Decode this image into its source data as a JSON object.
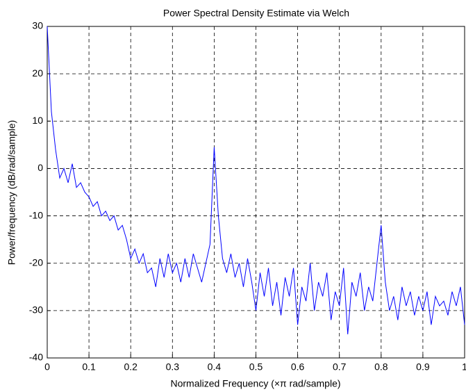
{
  "chart_data": {
    "type": "line",
    "title": "Power Spectral Density Estimate via Welch",
    "x_label": "Normalized Frequency  (×π rad/sample)",
    "y_label": "Power/frequency (dB/rad/sample)",
    "x": [
      0,
      0.01,
      0.02,
      0.03,
      0.04,
      0.05,
      0.06,
      0.07,
      0.08,
      0.09,
      0.1,
      0.11,
      0.12,
      0.13,
      0.14,
      0.15,
      0.16,
      0.17,
      0.18,
      0.19,
      0.2,
      0.21,
      0.22,
      0.23,
      0.24,
      0.25,
      0.26,
      0.27,
      0.28,
      0.29,
      0.3,
      0.31,
      0.32,
      0.33,
      0.34,
      0.35,
      0.36,
      0.37,
      0.38,
      0.39,
      0.4,
      0.41,
      0.42,
      0.43,
      0.44,
      0.45,
      0.46,
      0.47,
      0.48,
      0.49,
      0.5,
      0.51,
      0.52,
      0.53,
      0.54,
      0.55,
      0.56,
      0.57,
      0.58,
      0.59,
      0.6,
      0.61,
      0.62,
      0.63,
      0.64,
      0.65,
      0.66,
      0.67,
      0.68,
      0.69,
      0.7,
      0.71,
      0.72,
      0.73,
      0.74,
      0.75,
      0.76,
      0.77,
      0.78,
      0.79,
      0.8,
      0.81,
      0.82,
      0.83,
      0.84,
      0.85,
      0.86,
      0.87,
      0.88,
      0.89,
      0.9,
      0.91,
      0.92,
      0.93,
      0.94,
      0.95,
      0.96,
      0.97,
      0.98,
      0.99,
      1
    ],
    "series": [
      {
        "color": "#0000ff",
        "values": [
          30,
          12,
          4,
          -2,
          0,
          -3,
          1,
          -4,
          -3,
          -5,
          -6,
          -8,
          -7,
          -10,
          -9,
          -11,
          -10,
          -13,
          -12,
          -15,
          -19,
          -17,
          -20,
          -18,
          -22,
          -21,
          -25,
          -19,
          -23,
          -18,
          -22,
          -20,
          -24,
          -19,
          -23,
          -18,
          -21,
          -24,
          -20,
          -16,
          4.5,
          -10,
          -19,
          -22,
          -18,
          -23,
          -20,
          -25,
          -19,
          -24,
          -30,
          -22,
          -27,
          -21,
          -29,
          -24,
          -31,
          -23,
          -27,
          -21,
          -33,
          -25,
          -28,
          -20,
          -30,
          -24,
          -27,
          -22,
          -32,
          -26,
          -29,
          -21,
          -35,
          -24,
          -27,
          -22,
          -30,
          -25,
          -28,
          -20,
          -12,
          -24,
          -30,
          -27,
          -32,
          -25,
          -29,
          -26,
          -31,
          -27,
          -30,
          -26,
          -33,
          -27,
          -29,
          -28,
          -31,
          -26,
          -29,
          -25,
          -33
        ]
      }
    ],
    "xlim": [
      0,
      1
    ],
    "ylim": [
      -40,
      30
    ],
    "xticks": [
      0,
      0.1,
      0.2,
      0.3,
      0.4,
      0.5,
      0.6,
      0.7,
      0.8,
      0.9,
      1
    ],
    "yticks": [
      -40,
      -30,
      -20,
      -10,
      0,
      10,
      20,
      30
    ],
    "grid": true
  }
}
